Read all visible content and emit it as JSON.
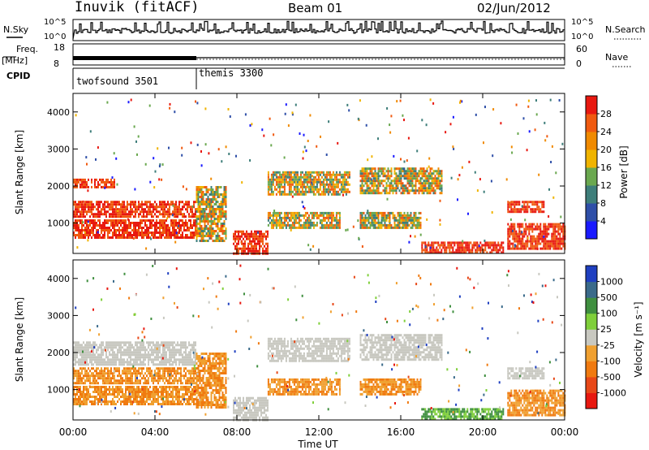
{
  "header": {
    "station": "Inuvik (fitACF)",
    "beam": "Beam 01",
    "date": "02/Jun/2012"
  },
  "strips": {
    "nsky": {
      "label": "N.Sky",
      "ticks": [
        "10^5",
        "10^0"
      ],
      "right_label": "N.Search",
      "right_ticks": [
        "10^5",
        "10^0"
      ]
    },
    "freq": {
      "label_line1": "Freq.",
      "label_line2": "[MHz]",
      "ticks": [
        "18",
        "8"
      ],
      "right_label": "Nave",
      "right_ticks": [
        "60",
        "0"
      ]
    },
    "cpid": {
      "label": "CPID",
      "modes": [
        {
          "name": "twofsound 3501",
          "start_hour": 0,
          "end_hour": 6
        },
        {
          "name": "themis 3300",
          "start_hour": 6,
          "end_hour": 24
        }
      ]
    }
  },
  "chart_data": [
    {
      "type": "heatmap",
      "title": "",
      "ylabel": "Slant Range [km]",
      "xlabel": "",
      "y_ticks": [
        "1000",
        "2000",
        "3000",
        "4000"
      ],
      "x_ticks": [
        "00:00",
        "04:00",
        "08:00",
        "12:00",
        "16:00",
        "20:00",
        "00:00"
      ],
      "xlim_hours": [
        0,
        24
      ],
      "ylim_km": [
        180,
        4500
      ],
      "colorbar": {
        "label": "Power [dB]",
        "ticks": [
          "4",
          "8",
          "12",
          "16",
          "20",
          "24",
          "28"
        ],
        "colors": [
          "#1a1aff",
          "#2f4fa8",
          "#3e7e7a",
          "#6aa84f",
          "#f0b400",
          "#f08a00",
          "#f05a10",
          "#e81810"
        ]
      },
      "echo_bands": [
        {
          "start": 0,
          "end": 6,
          "range_low": 600,
          "range_high": 1100,
          "level": "high"
        },
        {
          "start": 0,
          "end": 6,
          "range_low": 1150,
          "range_high": 1600,
          "level": "high"
        },
        {
          "start": 0,
          "end": 2,
          "range_low": 1950,
          "range_high": 2200,
          "level": "high"
        },
        {
          "start": 6,
          "end": 7.5,
          "range_low": 500,
          "range_high": 2000,
          "level": "mid"
        },
        {
          "start": 7.8,
          "end": 9.5,
          "range_low": 200,
          "range_high": 800,
          "level": "high"
        },
        {
          "start": 9.5,
          "end": 13.5,
          "range_low": 1800,
          "range_high": 2400,
          "level": "mid"
        },
        {
          "start": 9.5,
          "end": 13,
          "range_low": 900,
          "range_high": 1300,
          "level": "mid"
        },
        {
          "start": 14,
          "end": 18,
          "range_low": 1800,
          "range_high": 2500,
          "level": "mid"
        },
        {
          "start": 14,
          "end": 17,
          "range_low": 900,
          "range_high": 1300,
          "level": "mid"
        },
        {
          "start": 17,
          "end": 21,
          "range_low": 200,
          "range_high": 500,
          "level": "high"
        },
        {
          "start": 21.2,
          "end": 24,
          "range_low": 300,
          "range_high": 1000,
          "level": "high"
        },
        {
          "start": 21.2,
          "end": 23,
          "range_low": 1300,
          "range_high": 1600,
          "level": "high"
        }
      ]
    },
    {
      "type": "heatmap",
      "title": "",
      "ylabel": "Slant Range [km]",
      "xlabel": "Time UT",
      "y_ticks": [
        "1000",
        "2000",
        "3000",
        "4000"
      ],
      "x_ticks": [
        "00:00",
        "04:00",
        "08:00",
        "12:00",
        "16:00",
        "20:00",
        "00:00"
      ],
      "xlim_hours": [
        0,
        24
      ],
      "ylim_km": [
        180,
        4500
      ],
      "colorbar": {
        "label": "Velocity [m s⁻¹]",
        "ticks": [
          "1000",
          "500",
          "100",
          "25",
          "-25",
          "-100",
          "-500",
          "-1000"
        ],
        "colors": [
          "#1f3fc0",
          "#3a6a8a",
          "#3f8f3f",
          "#7fcf3a",
          "#c8c8c0",
          "#f0a030",
          "#f07a10",
          "#e84818",
          "#e81810"
        ]
      },
      "echo_bands": [
        {
          "start": 0,
          "end": 6,
          "range_low": 600,
          "range_high": 1100,
          "level": "neg"
        },
        {
          "start": 0,
          "end": 6,
          "range_low": 1150,
          "range_high": 1600,
          "level": "neg"
        },
        {
          "start": 0,
          "end": 6,
          "range_low": 1700,
          "range_high": 2300,
          "level": "zero"
        },
        {
          "start": 6,
          "end": 7.5,
          "range_low": 500,
          "range_high": 2000,
          "level": "neg"
        },
        {
          "start": 7.8,
          "end": 9.5,
          "range_low": 200,
          "range_high": 800,
          "level": "zero"
        },
        {
          "start": 9.5,
          "end": 13.5,
          "range_low": 1800,
          "range_high": 2400,
          "level": "zero"
        },
        {
          "start": 9.5,
          "end": 13,
          "range_low": 900,
          "range_high": 1300,
          "level": "neg"
        },
        {
          "start": 14,
          "end": 18,
          "range_low": 1800,
          "range_high": 2500,
          "level": "zero"
        },
        {
          "start": 14,
          "end": 17,
          "range_low": 900,
          "range_high": 1300,
          "level": "neg"
        },
        {
          "start": 17,
          "end": 21,
          "range_low": 200,
          "range_high": 500,
          "level": "pos"
        },
        {
          "start": 21.2,
          "end": 24,
          "range_low": 300,
          "range_high": 1000,
          "level": "neg"
        },
        {
          "start": 21.2,
          "end": 23,
          "range_low": 1300,
          "range_high": 1600,
          "level": "zero"
        }
      ]
    }
  ]
}
